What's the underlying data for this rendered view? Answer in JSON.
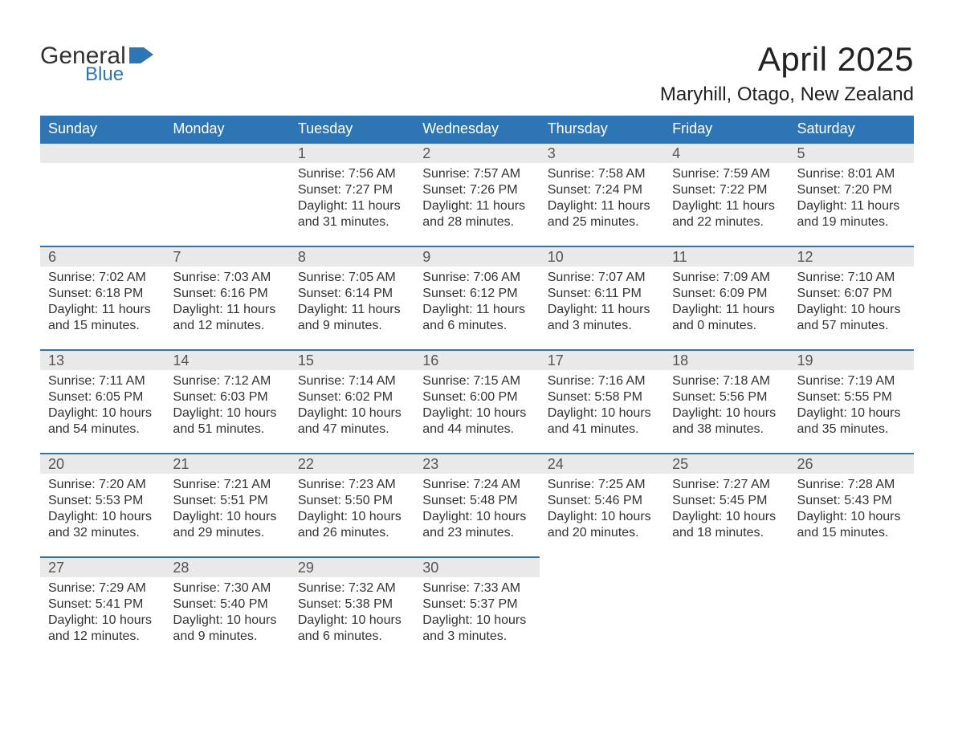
{
  "brand": {
    "part1": "General",
    "part2": "Blue",
    "logo_color": "#2e75b6",
    "text_color": "#333333"
  },
  "title": "April 2025",
  "location": "Maryhill, Otago, New Zealand",
  "header_bg": "#2e75b6",
  "header_fg": "#ffffff",
  "daynum_bg": "#e9e9e9",
  "daynum_border": "#2e75b6",
  "page_bg": "#ffffff",
  "weekdays": [
    "Sunday",
    "Monday",
    "Tuesday",
    "Wednesday",
    "Thursday",
    "Friday",
    "Saturday"
  ],
  "weeks": [
    [
      null,
      null,
      {
        "n": "1",
        "sunrise": "7:56 AM",
        "sunset": "7:27 PM",
        "daylight": "11 hours and 31 minutes."
      },
      {
        "n": "2",
        "sunrise": "7:57 AM",
        "sunset": "7:26 PM",
        "daylight": "11 hours and 28 minutes."
      },
      {
        "n": "3",
        "sunrise": "7:58 AM",
        "sunset": "7:24 PM",
        "daylight": "11 hours and 25 minutes."
      },
      {
        "n": "4",
        "sunrise": "7:59 AM",
        "sunset": "7:22 PM",
        "daylight": "11 hours and 22 minutes."
      },
      {
        "n": "5",
        "sunrise": "8:01 AM",
        "sunset": "7:20 PM",
        "daylight": "11 hours and 19 minutes."
      }
    ],
    [
      {
        "n": "6",
        "sunrise": "7:02 AM",
        "sunset": "6:18 PM",
        "daylight": "11 hours and 15 minutes."
      },
      {
        "n": "7",
        "sunrise": "7:03 AM",
        "sunset": "6:16 PM",
        "daylight": "11 hours and 12 minutes."
      },
      {
        "n": "8",
        "sunrise": "7:05 AM",
        "sunset": "6:14 PM",
        "daylight": "11 hours and 9 minutes."
      },
      {
        "n": "9",
        "sunrise": "7:06 AM",
        "sunset": "6:12 PM",
        "daylight": "11 hours and 6 minutes."
      },
      {
        "n": "10",
        "sunrise": "7:07 AM",
        "sunset": "6:11 PM",
        "daylight": "11 hours and 3 minutes."
      },
      {
        "n": "11",
        "sunrise": "7:09 AM",
        "sunset": "6:09 PM",
        "daylight": "11 hours and 0 minutes."
      },
      {
        "n": "12",
        "sunrise": "7:10 AM",
        "sunset": "6:07 PM",
        "daylight": "10 hours and 57 minutes."
      }
    ],
    [
      {
        "n": "13",
        "sunrise": "7:11 AM",
        "sunset": "6:05 PM",
        "daylight": "10 hours and 54 minutes."
      },
      {
        "n": "14",
        "sunrise": "7:12 AM",
        "sunset": "6:03 PM",
        "daylight": "10 hours and 51 minutes."
      },
      {
        "n": "15",
        "sunrise": "7:14 AM",
        "sunset": "6:02 PM",
        "daylight": "10 hours and 47 minutes."
      },
      {
        "n": "16",
        "sunrise": "7:15 AM",
        "sunset": "6:00 PM",
        "daylight": "10 hours and 44 minutes."
      },
      {
        "n": "17",
        "sunrise": "7:16 AM",
        "sunset": "5:58 PM",
        "daylight": "10 hours and 41 minutes."
      },
      {
        "n": "18",
        "sunrise": "7:18 AM",
        "sunset": "5:56 PM",
        "daylight": "10 hours and 38 minutes."
      },
      {
        "n": "19",
        "sunrise": "7:19 AM",
        "sunset": "5:55 PM",
        "daylight": "10 hours and 35 minutes."
      }
    ],
    [
      {
        "n": "20",
        "sunrise": "7:20 AM",
        "sunset": "5:53 PM",
        "daylight": "10 hours and 32 minutes."
      },
      {
        "n": "21",
        "sunrise": "7:21 AM",
        "sunset": "5:51 PM",
        "daylight": "10 hours and 29 minutes."
      },
      {
        "n": "22",
        "sunrise": "7:23 AM",
        "sunset": "5:50 PM",
        "daylight": "10 hours and 26 minutes."
      },
      {
        "n": "23",
        "sunrise": "7:24 AM",
        "sunset": "5:48 PM",
        "daylight": "10 hours and 23 minutes."
      },
      {
        "n": "24",
        "sunrise": "7:25 AM",
        "sunset": "5:46 PM",
        "daylight": "10 hours and 20 minutes."
      },
      {
        "n": "25",
        "sunrise": "7:27 AM",
        "sunset": "5:45 PM",
        "daylight": "10 hours and 18 minutes."
      },
      {
        "n": "26",
        "sunrise": "7:28 AM",
        "sunset": "5:43 PM",
        "daylight": "10 hours and 15 minutes."
      }
    ],
    [
      {
        "n": "27",
        "sunrise": "7:29 AM",
        "sunset": "5:41 PM",
        "daylight": "10 hours and 12 minutes."
      },
      {
        "n": "28",
        "sunrise": "7:30 AM",
        "sunset": "5:40 PM",
        "daylight": "10 hours and 9 minutes."
      },
      {
        "n": "29",
        "sunrise": "7:32 AM",
        "sunset": "5:38 PM",
        "daylight": "10 hours and 6 minutes."
      },
      {
        "n": "30",
        "sunrise": "7:33 AM",
        "sunset": "5:37 PM",
        "daylight": "10 hours and 3 minutes."
      },
      null,
      null,
      null
    ]
  ],
  "labels": {
    "sunrise": "Sunrise: ",
    "sunset": "Sunset: ",
    "daylight": "Daylight: "
  }
}
